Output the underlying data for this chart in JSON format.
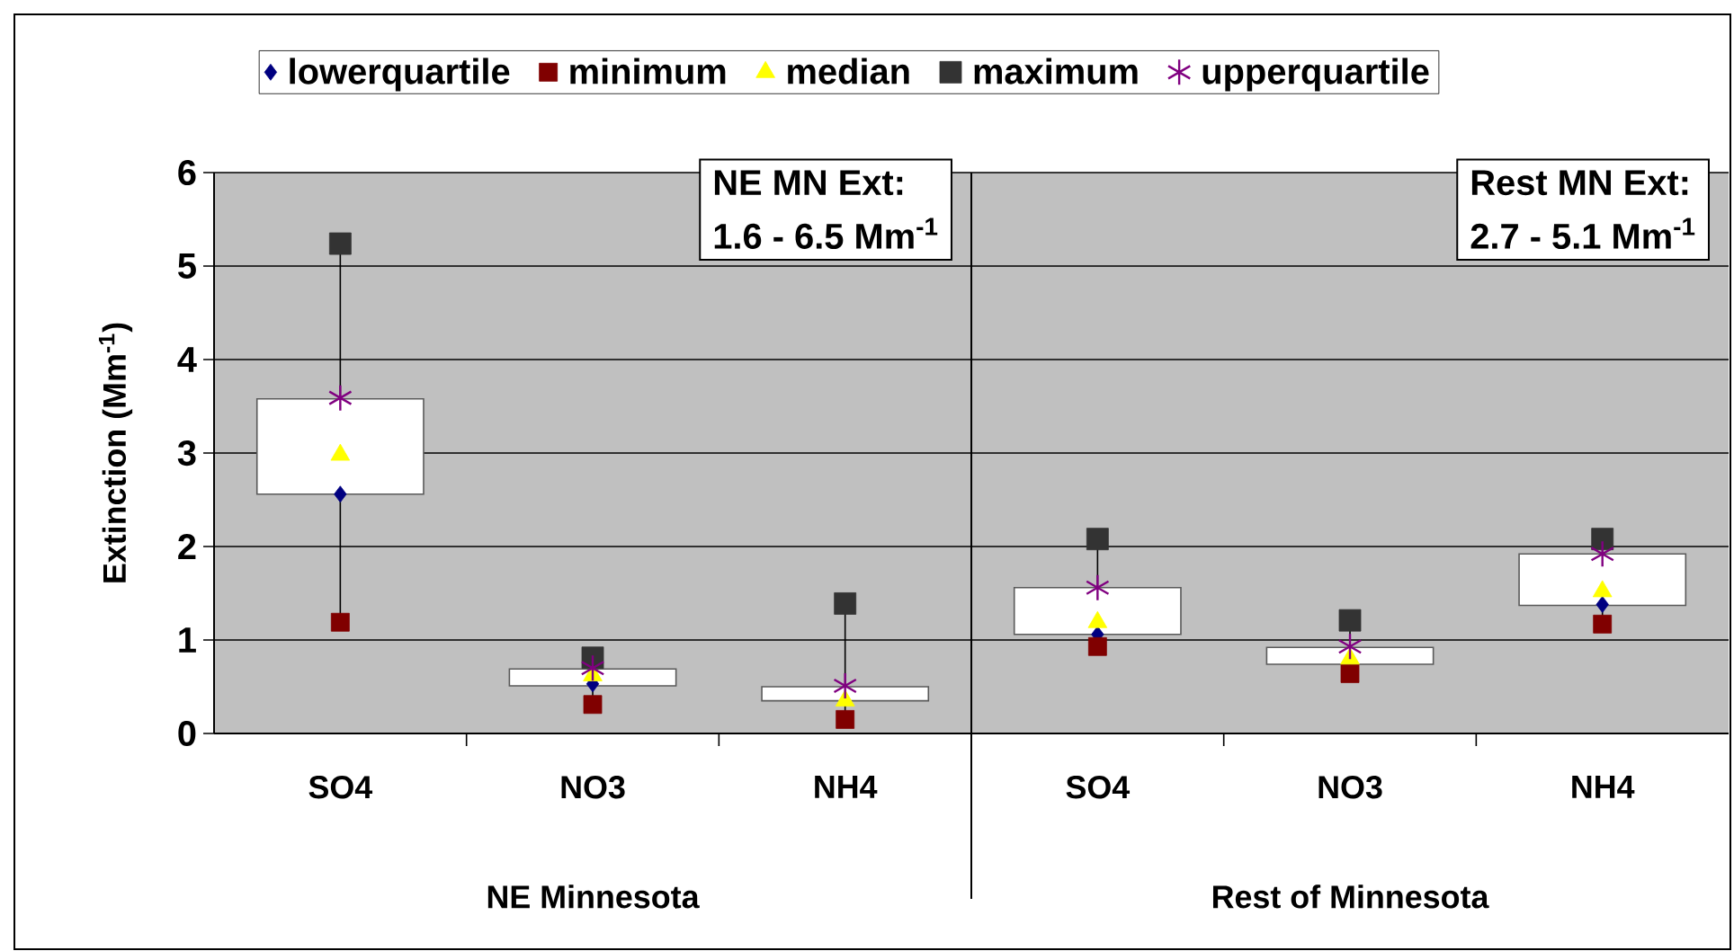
{
  "chart_data": [
    {
      "type": "box",
      "xlabel": "NE Minnesota",
      "ylabel": "Extinction (Mm$^{-1}$)",
      "categories": [
        "SO4",
        "NO3",
        "NH4"
      ],
      "ylim": [
        0,
        6
      ],
      "yticks": [
        0,
        1,
        2,
        3,
        4,
        5,
        6
      ],
      "grid": "y",
      "legend": "top",
      "annotations": [
        "NE MN Ext:",
        "1.6 - 6.5 Mm$^{-1}$"
      ],
      "boxes": [
        {
          "low": 1.19,
          "q1": 2.56,
          "q3": 3.58,
          "high": 5.24
        },
        {
          "low": 0.31,
          "q1": 0.51,
          "q3": 0.69,
          "high": 0.81
        },
        {
          "low": 0.15,
          "q1": 0.35,
          "q3": 0.5,
          "high": 1.39
        }
      ],
      "series": [
        {
          "type": "scatter",
          "name": "lowerquartile",
          "color": "#000080",
          "marker": "diamond",
          "values": [
            2.56,
            0.53,
            null
          ]
        },
        {
          "type": "scatter",
          "name": "minimum",
          "color": "#800000",
          "marker": "square",
          "values": [
            1.19,
            0.31,
            0.15
          ]
        },
        {
          "type": "scatter",
          "name": "median",
          "color": "#ffff00",
          "marker": "triangle",
          "values": [
            2.98,
            0.62,
            0.35
          ]
        },
        {
          "type": "scatter",
          "name": "maximum",
          "color": "#333333",
          "marker": "square",
          "values": [
            5.24,
            0.81,
            1.39
          ]
        },
        {
          "type": "scatter",
          "name": "upperquartile",
          "color": "#800080",
          "marker": "cross",
          "values": [
            3.59,
            0.7,
            0.51
          ]
        }
      ]
    },
    {
      "type": "box",
      "xlabel": "Rest of Minnesota",
      "categories": [
        "SO4",
        "NO3",
        "NH4"
      ],
      "ylim": [
        0,
        6
      ],
      "yticks": [
        0,
        1,
        2,
        3,
        4,
        5,
        6
      ],
      "grid": "y",
      "tick_labels": "x",
      "annotations": [
        "Rest MN Ext:",
        "2.7 - 5.1 Mm$^{-1}$"
      ],
      "boxes": [
        {
          "low": 0.93,
          "q1": 1.06,
          "q3": 1.56,
          "high": 2.08
        },
        {
          "low": 0.64,
          "q1": 0.74,
          "q3": 0.92,
          "high": 1.21
        },
        {
          "low": 1.17,
          "q1": 1.37,
          "q3": 1.92,
          "high": 2.08
        }
      ],
      "series": [
        {
          "type": "scatter",
          "color": "#000080",
          "marker": "diamond",
          "values": [
            1.06,
            null,
            1.38
          ]
        },
        {
          "type": "scatter",
          "color": "#800000",
          "marker": "square",
          "values": [
            0.93,
            0.64,
            1.17
          ]
        },
        {
          "type": "scatter",
          "color": "#ffff00",
          "marker": "triangle",
          "values": [
            1.19,
            0.8,
            1.52
          ]
        },
        {
          "type": "scatter",
          "color": "#333333",
          "marker": "square",
          "values": [
            2.08,
            1.21,
            2.08
          ]
        },
        {
          "type": "scatter",
          "color": "#800080",
          "marker": "cross",
          "values": [
            1.56,
            0.93,
            1.92
          ]
        }
      ]
    }
  ]
}
